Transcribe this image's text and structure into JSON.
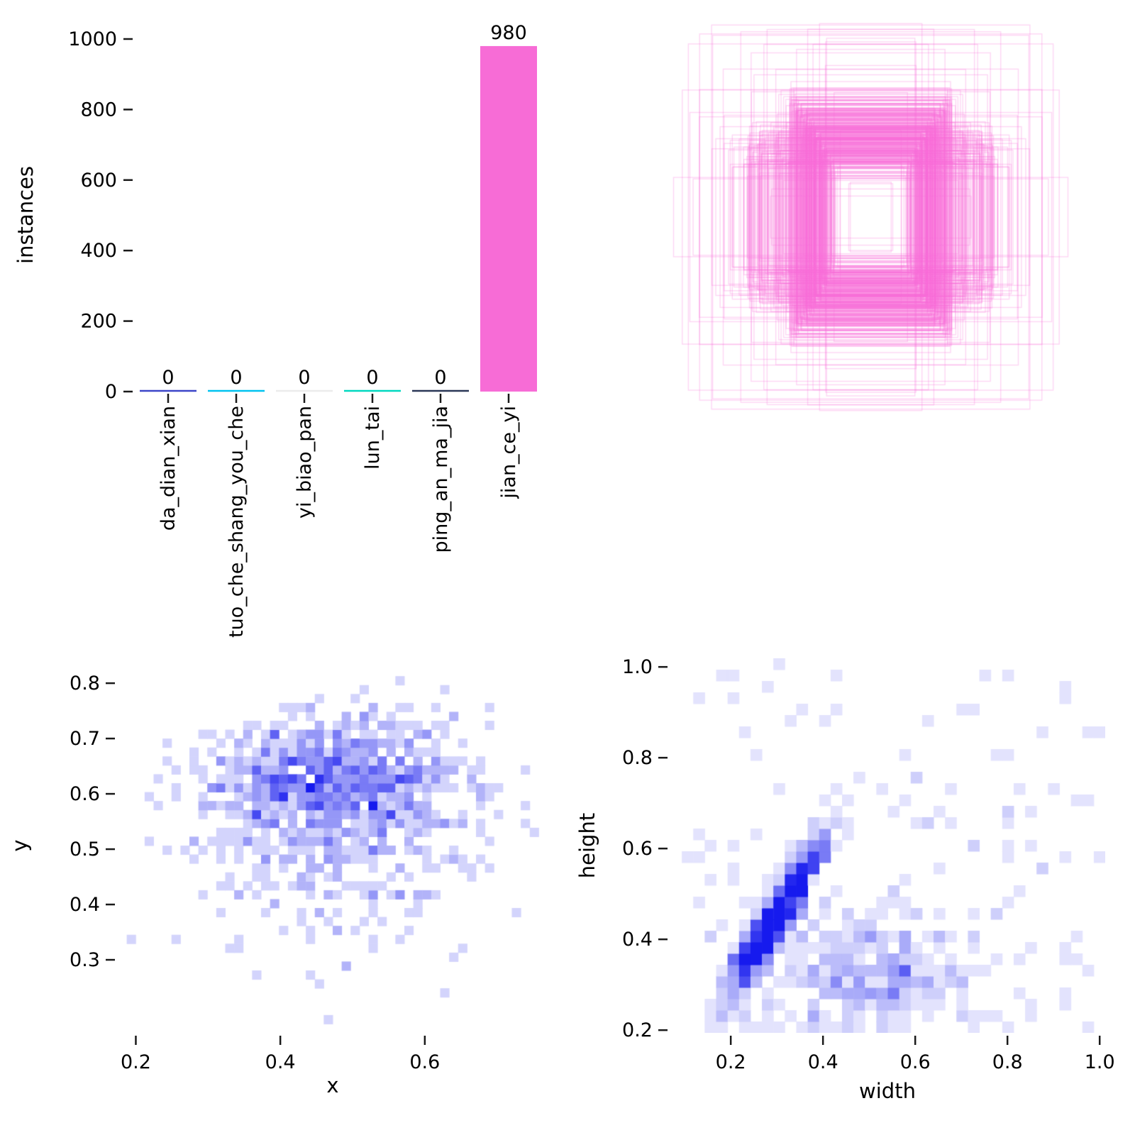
{
  "figure": {
    "background": "#ffffff",
    "panels": [
      "instances-bar",
      "boxes-overlay",
      "xy-histogram",
      "width-height-histogram"
    ]
  },
  "colors": {
    "heat_low": "#ffffff",
    "heat_high": "#161aee",
    "box_line": "#f76cd6",
    "tick": "#1a1a1a",
    "text": "#000000"
  },
  "chart_data": [
    {
      "id": "instances_bar",
      "type": "bar",
      "title": "",
      "ylabel": "instances",
      "categories": [
        "da_dian_xian",
        "tuo_che_shang_you_che",
        "yi_biao_pan",
        "lun_tai",
        "ping_an_ma_jia",
        "jian_ce_yi"
      ],
      "values": [
        0,
        0,
        0,
        0,
        0,
        980
      ],
      "value_labels": [
        "0",
        "0",
        "0",
        "0",
        "0",
        "980"
      ],
      "bar_colors": [
        "#3c46c8",
        "#00c3f0",
        "#ececec",
        "#00d8c0",
        "#2a3757",
        "#f76cd6"
      ],
      "yticks": [
        0,
        200,
        400,
        600,
        800,
        1000
      ],
      "ylim": [
        0,
        1000
      ],
      "grid": false,
      "legend": null
    },
    {
      "id": "boxes_overlay",
      "type": "boxes",
      "description": "all bounding boxes drawn concentric at image center, pink outlines",
      "count": 430,
      "seed": 11,
      "line_color": "#f76cd6",
      "line_alpha": 0.28,
      "mixture": [
        {
          "weight": 0.58,
          "x": {
            "dist": "normal",
            "mean": 0.3,
            "std": 0.055
          },
          "y": {
            "dist": "linked",
            "slope": 1.55,
            "intercept": -0.015,
            "noise": 0.032
          }
        },
        {
          "weight": 0.3,
          "x": {
            "dist": "normal",
            "mean": 0.5,
            "std": 0.115
          },
          "y": {
            "dist": "normal",
            "mean": 0.33,
            "std": 0.075
          }
        },
        {
          "weight": 0.12,
          "x": {
            "dist": "uniform",
            "min": 0.1,
            "max": 1.0
          },
          "y": {
            "dist": "uniform",
            "min": 0.16,
            "max": 1.0
          }
        }
      ]
    },
    {
      "id": "xy_hist",
      "type": "heatmap",
      "xlabel": "x",
      "ylabel": "y",
      "xticks": [
        0.2,
        0.4,
        0.6
      ],
      "yticks": [
        0.3,
        0.4,
        0.5,
        0.6,
        0.7,
        0.8
      ],
      "xlim": [
        0.175,
        0.77
      ],
      "ylim": [
        0.168,
        0.845
      ],
      "bins": [
        48,
        42
      ],
      "samples": 980,
      "seed": 7,
      "color_cap": 8,
      "grid": false,
      "mixture": [
        {
          "weight": 0.72,
          "x": {
            "dist": "normal",
            "mean": 0.48,
            "std": 0.085
          },
          "y": {
            "dist": "normal",
            "mean": 0.625,
            "std": 0.062
          }
        },
        {
          "weight": 0.28,
          "x": {
            "dist": "normal",
            "mean": 0.46,
            "std": 0.115
          },
          "y": {
            "dist": "normal",
            "mean": 0.5,
            "std": 0.105
          }
        }
      ]
    },
    {
      "id": "wh_hist",
      "type": "heatmap",
      "xlabel": "width",
      "ylabel": "height",
      "xticks": [
        0.2,
        0.4,
        0.6,
        0.8,
        1.0
      ],
      "yticks": [
        0.2,
        0.4,
        0.6,
        0.8,
        1.0
      ],
      "xlim": [
        0.069,
        1.012
      ],
      "ylim": [
        0.194,
        1.019
      ],
      "bins": [
        38,
        33
      ],
      "samples": 980,
      "seed": 13,
      "color_cap": 14,
      "grid": false,
      "mixture": [
        {
          "weight": 0.58,
          "x": {
            "dist": "normal",
            "mean": 0.3,
            "std": 0.055
          },
          "y": {
            "dist": "linked",
            "slope": 1.55,
            "intercept": -0.015,
            "noise": 0.032
          }
        },
        {
          "weight": 0.3,
          "x": {
            "dist": "normal",
            "mean": 0.5,
            "std": 0.115
          },
          "y": {
            "dist": "normal",
            "mean": 0.33,
            "std": 0.075
          }
        },
        {
          "weight": 0.12,
          "x": {
            "dist": "uniform",
            "min": 0.1,
            "max": 1.0
          },
          "y": {
            "dist": "uniform",
            "min": 0.16,
            "max": 1.0
          }
        }
      ]
    }
  ]
}
